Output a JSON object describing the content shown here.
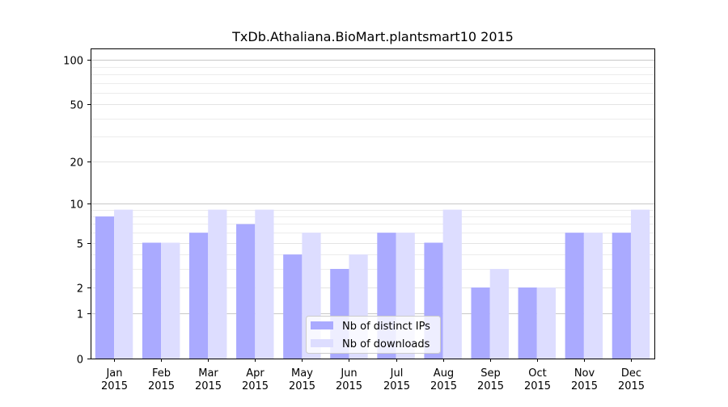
{
  "chart_data": {
    "type": "bar",
    "title": "TxDb.Athaliana.BioMart.plantsmart10 2015",
    "xlabel": "",
    "ylabel": "",
    "yscale": "log1p",
    "ylim": [
      0,
      120
    ],
    "yticks": [
      0,
      1,
      2,
      5,
      10,
      20,
      50,
      100
    ],
    "grid": true,
    "legend_position": "bottom-center",
    "categories": [
      [
        "Jan",
        "2015"
      ],
      [
        "Feb",
        "2015"
      ],
      [
        "Mar",
        "2015"
      ],
      [
        "Apr",
        "2015"
      ],
      [
        "May",
        "2015"
      ],
      [
        "Jun",
        "2015"
      ],
      [
        "Jul",
        "2015"
      ],
      [
        "Aug",
        "2015"
      ],
      [
        "Sep",
        "2015"
      ],
      [
        "Oct",
        "2015"
      ],
      [
        "Nov",
        "2015"
      ],
      [
        "Dec",
        "2015"
      ]
    ],
    "series": [
      {
        "name": "Nb of distinct IPs",
        "color": "#aaaaff",
        "values": [
          8,
          5,
          6,
          7,
          4,
          3,
          6,
          5,
          2,
          2,
          6,
          6
        ]
      },
      {
        "name": "Nb of downloads",
        "color": "#ddddff",
        "values": [
          9,
          5,
          9,
          9,
          6,
          4,
          6,
          9,
          3,
          2,
          6,
          9
        ]
      }
    ]
  }
}
